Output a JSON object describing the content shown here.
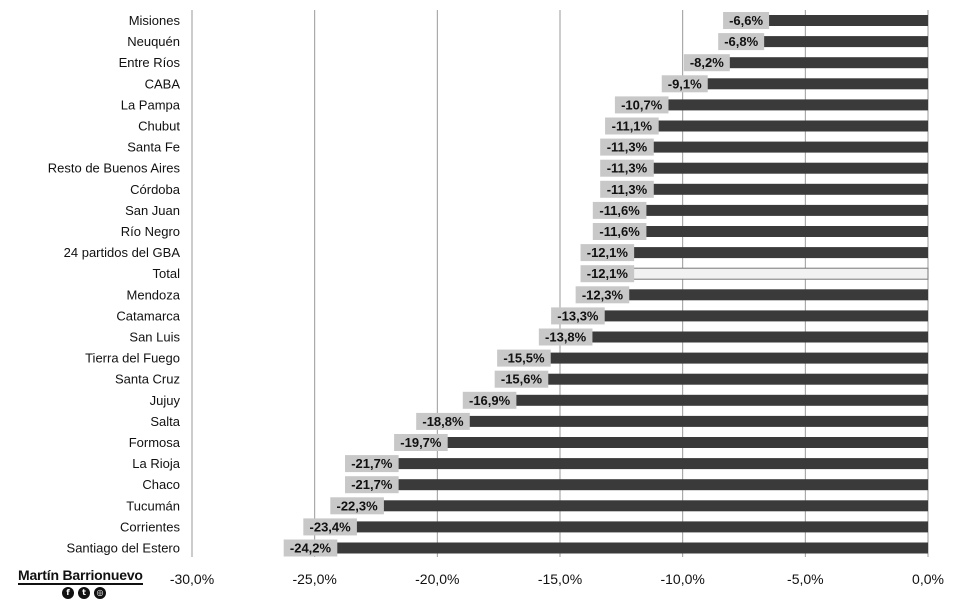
{
  "chart_data": {
    "type": "bar",
    "orientation": "horizontal",
    "categories": [
      "Misiones",
      "Neuquén",
      "Entre Ríos",
      "CABA",
      "La Pampa",
      "Chubut",
      "Santa Fe",
      "Resto de Buenos Aires",
      "Córdoba",
      "San Juan",
      "Río Negro",
      "24 partidos del GBA",
      "Total",
      "Mendoza",
      "Catamarca",
      "San Luis",
      "Tierra del Fuego",
      "Santa Cruz",
      "Jujuy",
      "Salta",
      "Formosa",
      "La Rioja",
      "Chaco",
      "Tucumán",
      "Corrientes",
      "Santiago del Estero"
    ],
    "values": [
      -6.6,
      -6.8,
      -8.2,
      -9.1,
      -10.7,
      -11.1,
      -11.3,
      -11.3,
      -11.3,
      -11.6,
      -11.6,
      -12.1,
      -12.1,
      -12.3,
      -13.3,
      -13.8,
      -15.5,
      -15.6,
      -16.9,
      -18.8,
      -19.7,
      -21.7,
      -21.7,
      -22.3,
      -23.4,
      -24.2
    ],
    "data_labels": [
      "-6,6%",
      "-6,8%",
      "-8,2%",
      "-9,1%",
      "-10,7%",
      "-11,1%",
      "-11,3%",
      "-11,3%",
      "-11,3%",
      "-11,6%",
      "-11,6%",
      "-12,1%",
      "-12,1%",
      "-12,3%",
      "-13,3%",
      "-13,8%",
      "-15,5%",
      "-15,6%",
      "-16,9%",
      "-18,8%",
      "-19,7%",
      "-21,7%",
      "-21,7%",
      "-22,3%",
      "-23,4%",
      "-24,2%"
    ],
    "highlight_category": "Total",
    "xlim": [
      -30,
      0
    ],
    "x_ticks": [
      -30,
      -25,
      -20,
      -15,
      -10,
      -5,
      0
    ],
    "x_tick_labels": [
      "-30,0%",
      "-25,0%",
      "-20,0%",
      "-15,0%",
      "-10,0%",
      "-5,0%",
      "0,0%"
    ],
    "grid": true,
    "colors": {
      "bar": "#3a3a3a",
      "highlight_bar": "#f2f2f2",
      "label_box": "#c8c8c8",
      "grid": "#9a9a9a"
    }
  },
  "branding": {
    "name": "Martín Barrionuevo",
    "icons": [
      "facebook-icon",
      "twitter-icon",
      "instagram-icon"
    ],
    "icon_glyphs": [
      "f",
      "t",
      "◎"
    ]
  }
}
